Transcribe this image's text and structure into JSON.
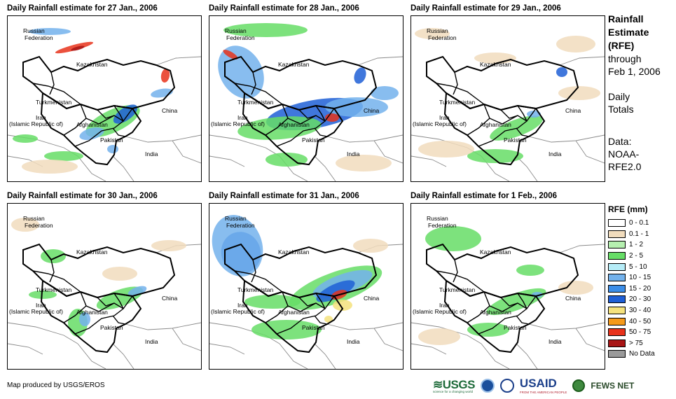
{
  "panels": [
    {
      "title": "Daily Rainfall estimate for 27 Jan., 2006",
      "rain": [
        {
          "cls": "c2",
          "cx": 150,
          "cy": 150,
          "rx": 42,
          "ry": 16,
          "rot": -25
        },
        {
          "cls": "c3",
          "cx": 120,
          "cy": 168,
          "rx": 18,
          "ry": 8,
          "rot": -15
        },
        {
          "cls": "c4",
          "cx": 168,
          "cy": 140,
          "rx": 20,
          "ry": 9,
          "rot": -35
        },
        {
          "cls": "c2",
          "cx": 80,
          "cy": 200,
          "rx": 28,
          "ry": 7,
          "rot": 0
        },
        {
          "cls": "c1",
          "cx": 60,
          "cy": 215,
          "rx": 40,
          "ry": 10,
          "rot": 0
        },
        {
          "cls": "c3",
          "cx": 220,
          "cy": 110,
          "rx": 16,
          "ry": 6,
          "rot": -10
        },
        {
          "cls": "c5",
          "cx": 95,
          "cy": 45,
          "rx": 28,
          "ry": 4,
          "rot": -15
        },
        {
          "cls": "c6",
          "cx": 100,
          "cy": 46,
          "rx": 10,
          "ry": 2.5,
          "rot": -15
        },
        {
          "cls": "c3",
          "cx": 60,
          "cy": 22,
          "rx": 30,
          "ry": 5,
          "rot": 0
        },
        {
          "cls": "c5",
          "cx": 225,
          "cy": 85,
          "rx": 6,
          "ry": 10,
          "rot": 10
        },
        {
          "cls": "c2",
          "cx": 25,
          "cy": 175,
          "rx": 18,
          "ry": 6,
          "rot": 0
        },
        {
          "cls": "c3",
          "cx": 150,
          "cy": 190,
          "rx": 8,
          "ry": 6,
          "rot": 0
        }
      ]
    },
    {
      "title": "Daily Rainfall estimate for 28 Jan., 2006",
      "rain": [
        {
          "cls": "c4",
          "cx": 150,
          "cy": 140,
          "rx": 70,
          "ry": 20,
          "rot": -10
        },
        {
          "cls": "c3",
          "cx": 210,
          "cy": 130,
          "rx": 45,
          "ry": 14,
          "rot": 0
        },
        {
          "cls": "c2",
          "cx": 100,
          "cy": 160,
          "rx": 60,
          "ry": 16,
          "rot": -5
        },
        {
          "cls": "c3",
          "cx": 45,
          "cy": 80,
          "rx": 30,
          "ry": 40,
          "rot": -30
        },
        {
          "cls": "c5",
          "cx": 30,
          "cy": 55,
          "rx": 12,
          "ry": 4,
          "rot": 30
        },
        {
          "cls": "c2",
          "cx": 80,
          "cy": 20,
          "rx": 60,
          "ry": 10,
          "rot": 0
        },
        {
          "cls": "c4",
          "cx": 215,
          "cy": 85,
          "rx": 8,
          "ry": 12,
          "rot": 20
        },
        {
          "cls": "c5",
          "cx": 175,
          "cy": 145,
          "rx": 10,
          "ry": 6,
          "rot": 0
        },
        {
          "cls": "c2",
          "cx": 110,
          "cy": 205,
          "rx": 30,
          "ry": 10,
          "rot": 0
        },
        {
          "cls": "c1",
          "cx": 220,
          "cy": 210,
          "rx": 40,
          "ry": 12,
          "rot": 0
        },
        {
          "cls": "c3",
          "cx": 250,
          "cy": 110,
          "rx": 20,
          "ry": 10,
          "rot": 0
        }
      ]
    },
    {
      "title": "Daily Rainfall estimate for 29 Jan., 2006",
      "rain": [
        {
          "cls": "c1",
          "cx": 30,
          "cy": 25,
          "rx": 25,
          "ry": 8,
          "rot": 0
        },
        {
          "cls": "c1",
          "cx": 120,
          "cy": 60,
          "rx": 30,
          "ry": 8,
          "rot": 0
        },
        {
          "cls": "c1",
          "cx": 235,
          "cy": 40,
          "rx": 28,
          "ry": 12,
          "rot": 0
        },
        {
          "cls": "c2",
          "cx": 150,
          "cy": 160,
          "rx": 40,
          "ry": 12,
          "rot": -20
        },
        {
          "cls": "c2",
          "cx": 120,
          "cy": 200,
          "rx": 40,
          "ry": 10,
          "rot": 0
        },
        {
          "cls": "c4",
          "cx": 215,
          "cy": 80,
          "rx": 8,
          "ry": 7,
          "rot": 0
        },
        {
          "cls": "c1",
          "cx": 50,
          "cy": 190,
          "rx": 40,
          "ry": 12,
          "rot": 0
        },
        {
          "cls": "c1",
          "cx": 240,
          "cy": 110,
          "rx": 30,
          "ry": 10,
          "rot": 0
        },
        {
          "cls": "c3",
          "cx": 175,
          "cy": 140,
          "rx": 10,
          "ry": 5,
          "rot": 0
        }
      ]
    },
    {
      "title": "Daily Rainfall estimate for 30 Jan., 2006",
      "rain": [
        {
          "cls": "c1",
          "cx": 25,
          "cy": 30,
          "rx": 20,
          "ry": 10,
          "rot": 0
        },
        {
          "cls": "c2",
          "cx": 65,
          "cy": 75,
          "rx": 18,
          "ry": 10,
          "rot": 0
        },
        {
          "cls": "c2",
          "cx": 160,
          "cy": 135,
          "rx": 35,
          "ry": 12,
          "rot": -20
        },
        {
          "cls": "c3",
          "cx": 185,
          "cy": 125,
          "rx": 14,
          "ry": 6,
          "rot": -20
        },
        {
          "cls": "c1",
          "cx": 160,
          "cy": 100,
          "rx": 25,
          "ry": 10,
          "rot": 0
        },
        {
          "cls": "c2",
          "cx": 100,
          "cy": 170,
          "rx": 14,
          "ry": 20,
          "rot": 0
        },
        {
          "cls": "c3",
          "cx": 110,
          "cy": 165,
          "rx": 8,
          "ry": 10,
          "rot": 0
        },
        {
          "cls": "c1",
          "cx": 230,
          "cy": 60,
          "rx": 25,
          "ry": 8,
          "rot": 0
        },
        {
          "cls": "c2",
          "cx": 50,
          "cy": 130,
          "rx": 20,
          "ry": 6,
          "rot": 0
        }
      ]
    },
    {
      "title": "Daily Rainfall estimate for 31 Jan., 2006",
      "rain": [
        {
          "cls": "c2",
          "cx": 180,
          "cy": 120,
          "rx": 70,
          "ry": 22,
          "rot": -20
        },
        {
          "cls": "c3",
          "cx": 190,
          "cy": 115,
          "rx": 45,
          "ry": 14,
          "rot": -20
        },
        {
          "cls": "c4",
          "cx": 180,
          "cy": 125,
          "rx": 30,
          "ry": 10,
          "rot": -25
        },
        {
          "cls": "c5",
          "cx": 185,
          "cy": 130,
          "rx": 12,
          "ry": 6,
          "rot": -20
        },
        {
          "cls": "c7",
          "cx": 190,
          "cy": 145,
          "rx": 14,
          "ry": 8,
          "rot": 0
        },
        {
          "cls": "c4",
          "cx": 45,
          "cy": 70,
          "rx": 28,
          "ry": 30,
          "rot": -20
        },
        {
          "cls": "c3",
          "cx": 40,
          "cy": 60,
          "rx": 35,
          "ry": 45,
          "rot": -20
        },
        {
          "cls": "c2",
          "cx": 110,
          "cy": 180,
          "rx": 50,
          "ry": 14,
          "rot": 0
        },
        {
          "cls": "c2",
          "cx": 90,
          "cy": 140,
          "rx": 40,
          "ry": 10,
          "rot": 0
        },
        {
          "cls": "c1",
          "cx": 230,
          "cy": 60,
          "rx": 25,
          "ry": 10,
          "rot": 0
        },
        {
          "cls": "c7",
          "cx": 170,
          "cy": 165,
          "rx": 6,
          "ry": 5,
          "rot": 0
        }
      ]
    },
    {
      "title": "Daily Rainfall estimate for 1 Feb., 2006",
      "rain": [
        {
          "cls": "c2",
          "cx": 60,
          "cy": 50,
          "rx": 40,
          "ry": 18,
          "rot": 0
        },
        {
          "cls": "c2",
          "cx": 150,
          "cy": 140,
          "rx": 45,
          "ry": 12,
          "rot": -20
        },
        {
          "cls": "c2",
          "cx": 110,
          "cy": 180,
          "rx": 30,
          "ry": 10,
          "rot": 0
        },
        {
          "cls": "c1",
          "cx": 40,
          "cy": 190,
          "rx": 30,
          "ry": 12,
          "rot": 0
        },
        {
          "cls": "c2",
          "cx": 170,
          "cy": 95,
          "rx": 20,
          "ry": 8,
          "rot": 0
        },
        {
          "cls": "c3",
          "cx": 180,
          "cy": 130,
          "rx": 8,
          "ry": 4,
          "rot": 0
        },
        {
          "cls": "c1",
          "cx": 235,
          "cy": 120,
          "rx": 25,
          "ry": 10,
          "rot": 0
        }
      ]
    }
  ],
  "map_labels": {
    "russia1": "Russian",
    "russia2": "Federation",
    "kazakhstan": "Kazakhstan",
    "turkmenistan": "Turkmenistan",
    "china": "China",
    "iran1": "Iran",
    "iran2": "(Islamic Republic of)",
    "afghanistan": "Afghanistan",
    "pakistan": "Pakistan",
    "india": "India"
  },
  "sidebar": {
    "title_line1": "Rainfall",
    "title_line2": "Estimate",
    "title_line3": "(RFE)",
    "through": "through",
    "date": "Feb 1, 2006",
    "daily1": "Daily",
    "daily2": "Totals",
    "data1": "Data:",
    "data2": "NOAA-",
    "data3": "RFE2.0"
  },
  "legend": {
    "title": "RFE (mm)",
    "items": [
      {
        "label": "0 - 0.1",
        "color": "#ffffff"
      },
      {
        "label": "0.1 - 1",
        "color": "#f1dcbd"
      },
      {
        "label": "1 - 2",
        "color": "#b6f0b0"
      },
      {
        "label": "2 - 5",
        "color": "#66dd66"
      },
      {
        "label": "5 - 10",
        "color": "#b5ecf7"
      },
      {
        "label": "10 - 15",
        "color": "#73b2ec"
      },
      {
        "label": "15 - 20",
        "color": "#3c8ee8"
      },
      {
        "label": "20 - 30",
        "color": "#1f5fd6"
      },
      {
        "label": "30 - 40",
        "color": "#f5e27d"
      },
      {
        "label": "40 - 50",
        "color": "#f59a1b"
      },
      {
        "label": "50 - 75",
        "color": "#e8321b"
      },
      {
        "label": "> 75",
        "color": "#a81414"
      },
      {
        "label": "No Data",
        "color": "#9a9a9a"
      }
    ]
  },
  "footer": {
    "credit": "Map produced by USGS/EROS",
    "logo_usgs": "≋USGS",
    "logo_usgs_tag": "science for a changing world",
    "logo_usaid": "USAID",
    "logo_usaid_tag": "FROM THE AMERICAN PEOPLE",
    "logo_fews": "FEWS NET"
  }
}
